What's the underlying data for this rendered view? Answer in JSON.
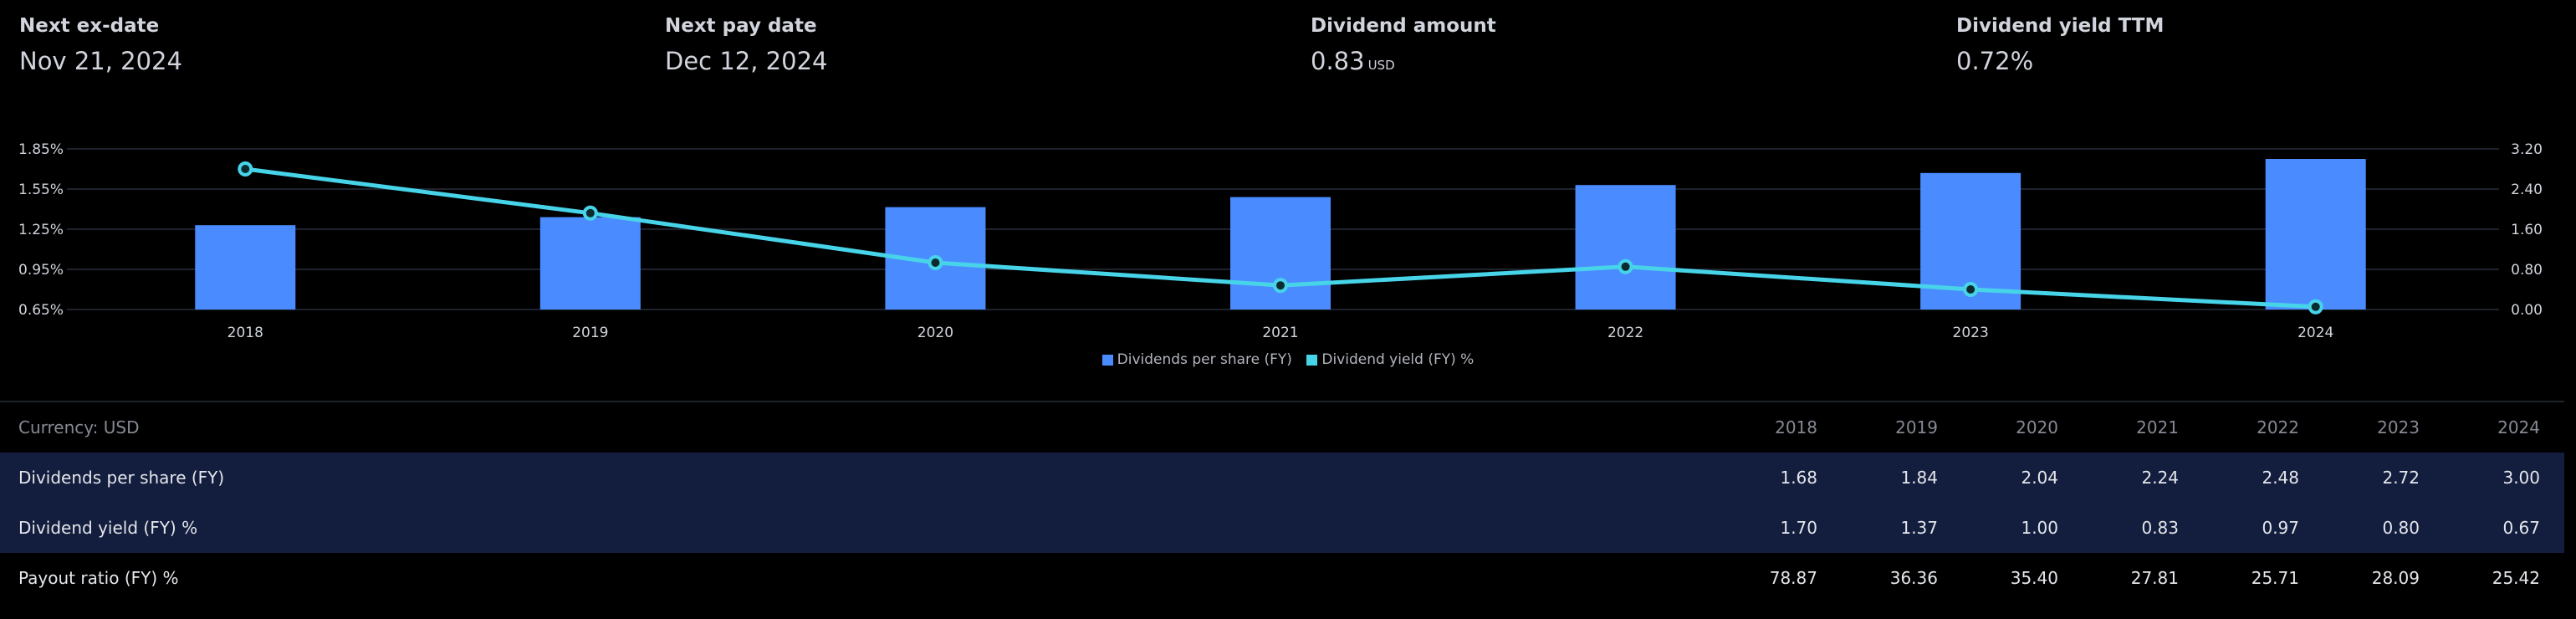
{
  "stats": [
    {
      "label": "Next ex-date",
      "value": "Nov 21, 2024",
      "unit": ""
    },
    {
      "label": "Next pay date",
      "value": "Dec 12, 2024",
      "unit": ""
    },
    {
      "label": "Dividend amount",
      "value": "0.83",
      "unit": "USD"
    },
    {
      "label": "Dividend yield TTM",
      "value": "0.72%",
      "unit": ""
    }
  ],
  "chart_data": {
    "type": "bar",
    "categories": [
      "2018",
      "2019",
      "2020",
      "2021",
      "2022",
      "2023",
      "2024"
    ],
    "series": [
      {
        "name": "Dividends per share (FY)",
        "kind": "bar",
        "axis": "right",
        "color": "#4a8cff",
        "values": [
          1.68,
          1.84,
          2.04,
          2.24,
          2.48,
          2.72,
          3.0
        ]
      },
      {
        "name": "Dividend yield (FY) %",
        "kind": "line",
        "axis": "left",
        "color": "#47d3e8",
        "values": [
          1.7,
          1.37,
          1.0,
          0.83,
          0.97,
          0.8,
          0.67
        ]
      }
    ],
    "left_axis": {
      "ticks": [
        "1.85%",
        "1.55%",
        "1.25%",
        "0.95%",
        "0.65%"
      ],
      "tick_values": [
        1.85,
        1.55,
        1.25,
        0.95,
        0.65
      ],
      "range": [
        0.65,
        1.85
      ]
    },
    "right_axis": {
      "ticks": [
        "3.20",
        "2.40",
        "1.60",
        "0.80",
        "0.00"
      ],
      "tick_values": [
        3.2,
        2.4,
        1.6,
        0.8,
        0.0
      ],
      "range": [
        0.0,
        3.2
      ]
    },
    "grid": true,
    "legend": "bottom-center"
  },
  "table": {
    "currency_label": "Currency: USD",
    "years": [
      "2018",
      "2019",
      "2020",
      "2021",
      "2022",
      "2023",
      "2024"
    ],
    "rows": [
      {
        "label": "Dividends per share (FY)",
        "values": [
          "1.68",
          "1.84",
          "2.04",
          "2.24",
          "2.48",
          "2.72",
          "3.00"
        ]
      },
      {
        "label": "Dividend yield (FY) %",
        "values": [
          "1.70",
          "1.37",
          "1.00",
          "0.83",
          "0.97",
          "0.80",
          "0.67"
        ]
      },
      {
        "label": "Payout ratio (FY) %",
        "values": [
          "78.87",
          "36.36",
          "35.40",
          "27.81",
          "25.71",
          "28.09",
          "25.42"
        ]
      }
    ]
  },
  "colors": {
    "bar": "#4a8cff",
    "line": "#47d3e8",
    "grid": "#1e222d",
    "highlight_row": "#131d3d"
  }
}
